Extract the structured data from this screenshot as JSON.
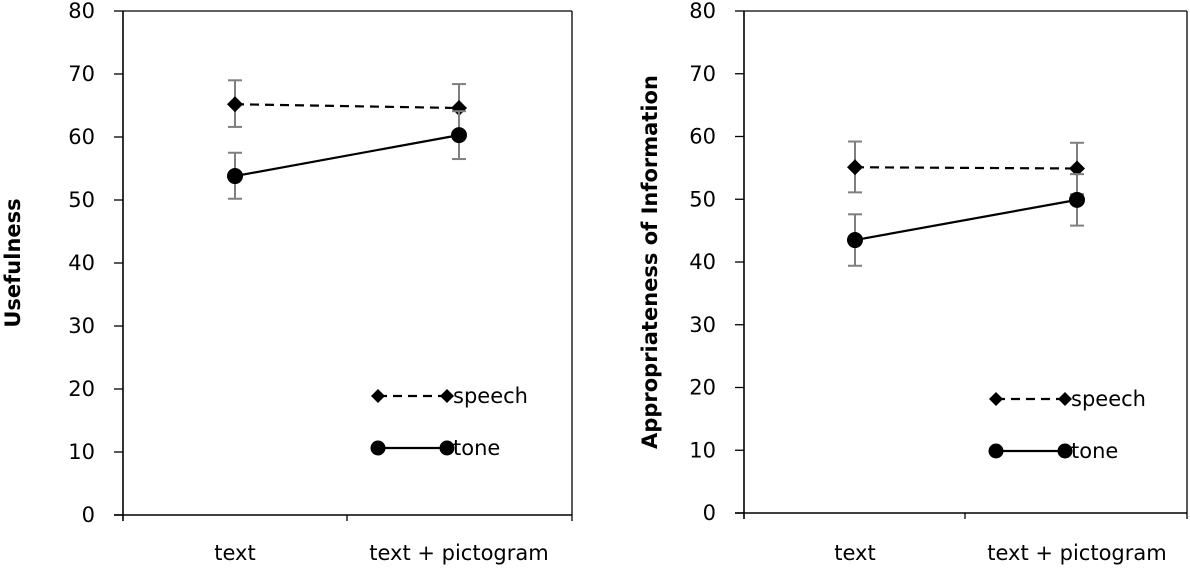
{
  "chart_data": [
    {
      "type": "line",
      "title": "",
      "xlabel": "",
      "ylabel": "Usefulness",
      "ylim": [
        0,
        80
      ],
      "yticks": [
        0,
        10,
        20,
        30,
        40,
        50,
        60,
        70,
        80
      ],
      "categories": [
        "text",
        "text + pictogram"
      ],
      "grid": false,
      "legend_position": "inside-bottom-right",
      "series": [
        {
          "name": "speech",
          "marker": "diamond",
          "line": "dashed",
          "values": [
            65.2,
            64.6
          ],
          "error_low": [
            61.6,
            60.8
          ],
          "error_high": [
            69.0,
            68.4
          ]
        },
        {
          "name": "tone",
          "marker": "circle",
          "line": "solid",
          "values": [
            53.8,
            60.3
          ],
          "error_low": [
            50.2,
            56.5
          ],
          "error_high": [
            57.5,
            64.1
          ]
        }
      ]
    },
    {
      "type": "line",
      "title": "",
      "xlabel": "",
      "ylabel": "Appropriateness of Information",
      "ylim": [
        0,
        80
      ],
      "yticks": [
        0,
        10,
        20,
        30,
        40,
        50,
        60,
        70,
        80
      ],
      "categories": [
        "text",
        "text + pictogram"
      ],
      "grid": false,
      "legend_position": "inside-bottom-right",
      "series": [
        {
          "name": "speech",
          "marker": "diamond",
          "line": "dashed",
          "values": [
            55.1,
            54.9
          ],
          "error_low": [
            51.1,
            50.8
          ],
          "error_high": [
            59.2,
            59.0
          ]
        },
        {
          "name": "tone",
          "marker": "circle",
          "line": "solid",
          "values": [
            43.5,
            49.9
          ],
          "error_low": [
            39.4,
            45.8
          ],
          "error_high": [
            47.6,
            54.0
          ]
        }
      ]
    }
  ],
  "colors": {
    "line": "#000000",
    "error_bar": "#7f7f7f"
  }
}
